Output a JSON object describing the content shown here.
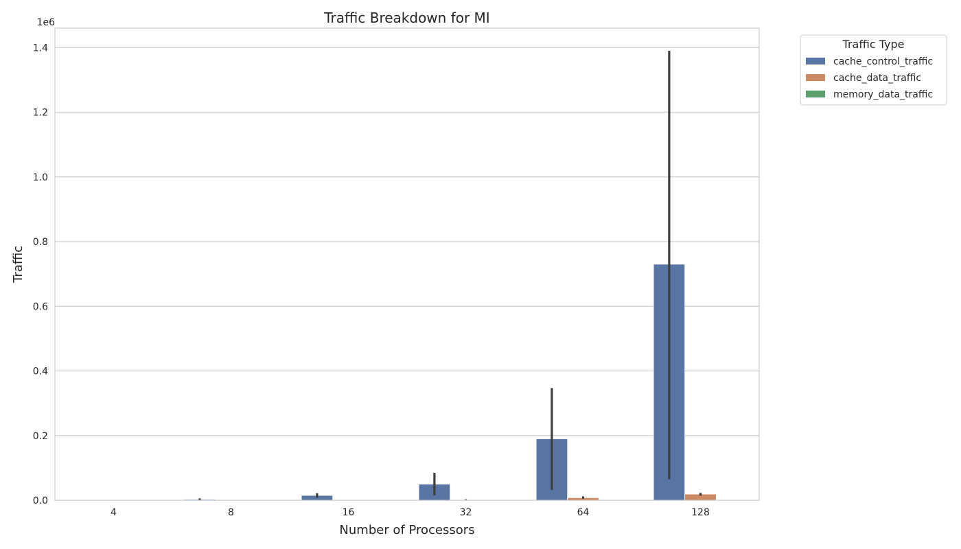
{
  "chart_data": {
    "type": "bar",
    "title": "Traffic Breakdown for MI",
    "xlabel": "Number of Processors",
    "ylabel": "Traffic",
    "y_scale_label": "1e6",
    "categories": [
      "4",
      "8",
      "16",
      "32",
      "64",
      "128"
    ],
    "ylim": [
      0,
      1.46
    ],
    "yticks": [
      "0.0",
      "0.2",
      "0.4",
      "0.6",
      "0.8",
      "1.0",
      "1.2",
      "1.4"
    ],
    "grid": true,
    "legend": {
      "title": "Traffic Type",
      "placement": "outside-top-right"
    },
    "series": [
      {
        "name": "cache_control_traffic",
        "color": "#5875a4",
        "values": [
          0.0008,
          0.003,
          0.015,
          0.05,
          0.19,
          0.73
        ],
        "err_low": [
          0.0003,
          0.001,
          0.008,
          0.015,
          0.032,
          0.065
        ],
        "err_high": [
          0.0012,
          0.006,
          0.022,
          0.085,
          0.347,
          1.39
        ]
      },
      {
        "name": "cache_data_traffic",
        "color": "#cc8963",
        "values": [
          0.0,
          0.0002,
          0.0008,
          0.002,
          0.008,
          0.019
        ],
        "err_low": [
          0.0,
          0.0001,
          0.0004,
          0.001,
          0.005,
          0.014
        ],
        "err_high": [
          0.0,
          0.0003,
          0.0012,
          0.003,
          0.012,
          0.023
        ]
      },
      {
        "name": "memory_data_traffic",
        "color": "#5f9e6e",
        "values": [
          0.0,
          0.0,
          0.0,
          0.0,
          0.0,
          0.0
        ],
        "err_low": [
          0.0,
          0.0,
          0.0,
          0.0,
          0.0,
          0.0
        ],
        "err_high": [
          0.0,
          0.0,
          0.0,
          0.0,
          0.0,
          0.0
        ]
      }
    ]
  }
}
